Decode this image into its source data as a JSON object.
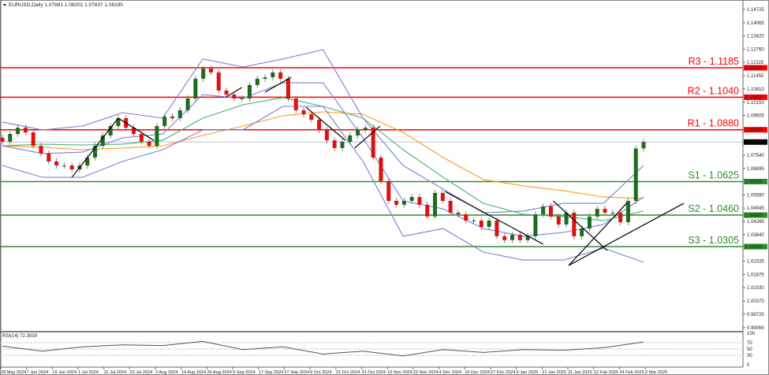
{
  "header": {
    "symbol_line": "EURUSD,Daily  1.07881 1.08202 1.07837 1.08195",
    "collapse_icon": "triangle-down-icon"
  },
  "colors": {
    "bull": "#1e6b1e",
    "bear": "#e01010",
    "resistance": "#ff0000",
    "support": "#2e8b2e",
    "bollinger": "#7c7cd6",
    "ma_fast": "#3cb371",
    "ma_slow": "#ff9a1a",
    "trendline": "#000000",
    "current_price_bg": "#000000"
  },
  "chart_data": [
    {
      "type": "candlestick",
      "title": "EURUSD,Daily",
      "ohlc_last": {
        "open": 1.07881,
        "high": 1.08202,
        "low": 1.07837,
        "close": 1.08195
      },
      "closes": [
        1.0821,
        1.0859,
        1.089,
        1.0867,
        1.0801,
        1.0763,
        1.0724,
        1.0704,
        1.0704,
        1.0685,
        1.0704,
        1.0743,
        1.0801,
        1.0852,
        1.0898,
        1.0937,
        1.089,
        1.0859,
        1.0821,
        1.0801,
        1.0898,
        1.0945,
        1.0937,
        1.0976,
        1.1034,
        1.1131,
        1.1181,
        1.1162,
        1.1073,
        1.1053,
        1.1034,
        1.1034,
        1.11,
        1.1131,
        1.1138,
        1.1162,
        1.1131,
        1.1034,
        1.0976,
        1.0956,
        1.0929,
        1.0879,
        1.0828,
        1.079,
        1.0821,
        1.0852,
        1.0879,
        1.089,
        1.0743,
        1.0627,
        1.053,
        1.0511,
        1.053,
        1.0549,
        1.0511,
        1.0453,
        1.0569,
        1.053,
        1.0472,
        1.0464,
        1.0433,
        1.0433,
        1.0402,
        1.0433,
        1.0356,
        1.0337,
        1.0363,
        1.0337,
        1.0356,
        1.0464,
        1.0503,
        1.0453,
        1.0414,
        1.0472,
        1.0356,
        1.0394,
        1.0453,
        1.0491,
        1.0472,
        1.0472,
        1.0425,
        1.053,
        1.0788,
        1.08195
      ],
      "ylim": [
        0.9871,
        1.1518
      ],
      "overlays": {
        "ma_fast": [
          1.0801,
          1.0809,
          1.0805,
          1.0809,
          1.0828,
          1.0937,
          1.1003,
          1.1038,
          1.0995,
          1.0937,
          1.0782,
          1.0646,
          1.0518,
          1.0464,
          1.0453,
          1.0433,
          1.048
        ],
        "ma_slow": [
          1.0801,
          1.0794,
          1.0782,
          1.079,
          1.0801,
          1.0852,
          1.0898,
          1.0949,
          1.0968,
          1.0956,
          1.0867,
          1.0743,
          1.0635,
          1.0604,
          1.058,
          1.0549,
          1.0542
        ],
        "bb_upper": [
          1.0918,
          1.0879,
          1.0898,
          1.0964,
          1.0937,
          1.1228,
          1.1189,
          1.1228,
          1.1274,
          1.0937,
          1.0704,
          1.0588,
          1.0472,
          1.048,
          1.0518,
          1.0518,
          1.0704
        ],
        "bb_middle": [
          1.0801,
          1.0763,
          1.077,
          1.084,
          1.0859,
          1.1053,
          1.1034,
          1.1111,
          1.1111,
          1.084,
          1.053,
          1.0491,
          1.0394,
          1.0356,
          1.0375,
          1.0414,
          1.0549
        ],
        "bb_lower": [
          1.0704,
          1.0646,
          1.0646,
          1.0724,
          1.0782,
          1.0879,
          1.0879,
          1.0995,
          1.0995,
          1.0724,
          1.0356,
          1.0394,
          1.0278,
          1.0239,
          1.0239,
          1.0297,
          1.0228
        ]
      },
      "trendlines": [
        {
          "from": [
            9,
            1.0646
          ],
          "to": [
            15,
            1.0937
          ]
        },
        {
          "from": [
            15,
            1.0937
          ],
          "to": [
            19.6,
            1.0828
          ]
        },
        {
          "from": [
            29,
            1.1042
          ],
          "to": [
            31,
            1.1088
          ]
        },
        {
          "from": [
            34,
            1.1065
          ],
          "to": [
            37.4,
            1.1139
          ]
        },
        {
          "from": [
            39.3,
            1.0991
          ],
          "to": [
            44.4,
            1.0828
          ]
        },
        {
          "from": [
            45.6,
            1.079
          ],
          "to": [
            48.9,
            1.0898
          ]
        },
        {
          "from": [
            57.3,
            1.0576
          ],
          "to": [
            70,
            1.0317
          ]
        },
        {
          "from": [
            71.3,
            1.053
          ],
          "to": [
            78.3,
            1.0286
          ]
        },
        {
          "from": [
            73.3,
            1.0212
          ],
          "to": [
            80.8,
            1.0518
          ]
        },
        {
          "from": [
            73.3,
            1.0212
          ],
          "to": [
            88.2,
            1.0518
          ]
        }
      ],
      "levels": [
        {
          "label": "R3 - 1.1185",
          "price": 1.1185,
          "axis_label": "1.11850",
          "kind": "resistance"
        },
        {
          "label": "R2 - 1.1040",
          "price": 1.104,
          "axis_label": "1.10400",
          "kind": "resistance"
        },
        {
          "label": "R1 - 1.0880",
          "price": 1.088,
          "axis_label": "1.08800",
          "kind": "resistance"
        },
        {
          "label": "S1 - 1.0625",
          "price": 1.0625,
          "axis_label": "1.06250",
          "kind": "support"
        },
        {
          "label": "S2 - 1.0460",
          "price": 1.046,
          "axis_label": "1.04600",
          "kind": "support"
        },
        {
          "label": "S3 - 1.0305",
          "price": 1.0305,
          "axis_label": "1.03050",
          "kind": "support"
        }
      ],
      "current_price": {
        "price": 1.08195,
        "axis_label": "1.08195"
      },
      "y_ticks": [
        "1.14725",
        "1.14065",
        "1.13420",
        "1.12760",
        "1.12115",
        "1.11455",
        "1.10810",
        "1.10150",
        "1.09505",
        "1.07540",
        "1.06895",
        "1.05590",
        "1.04945",
        "1.04285",
        "1.03640",
        "1.02335",
        "1.01675",
        "1.01030",
        "1.00370",
        "0.99725",
        "0.99065"
      ],
      "x_ticks": [
        "28 May 2024",
        "7 Jun 2024",
        "19 Jun 2024",
        "1 Jul 2024",
        "11 Jul 2024",
        "23 Jul 2024",
        "2 Aug 2024",
        "14 Aug 2024",
        "26 Aug 2024",
        "5 Sep 2024",
        "17 Sep 2024",
        "27 Sep 2024",
        "9 Oct 2024",
        "21 Oct 2024",
        "31 Oct 2024",
        "12 Nov 2024",
        "22 Nov 2024",
        "4 Dec 2024",
        "16 Dec 2024",
        "27 Dec 2024",
        "9 Jan 2025",
        "21 Jan 2025",
        "31 Jan 2025",
        "12 Feb 2025",
        "24 Feb 2025",
        "6 Mar 2025"
      ]
    },
    {
      "type": "line",
      "title": "RSI(14) 72.3039",
      "values": [
        59,
        43,
        57,
        63,
        61,
        74,
        48,
        57,
        34,
        43,
        28,
        48,
        39,
        48,
        46,
        54,
        72.3
      ],
      "ylim": [
        0,
        100
      ],
      "levels": [
        70,
        50,
        30
      ],
      "y_ticks": [
        "100",
        "70",
        "50",
        "30",
        "0"
      ]
    }
  ]
}
